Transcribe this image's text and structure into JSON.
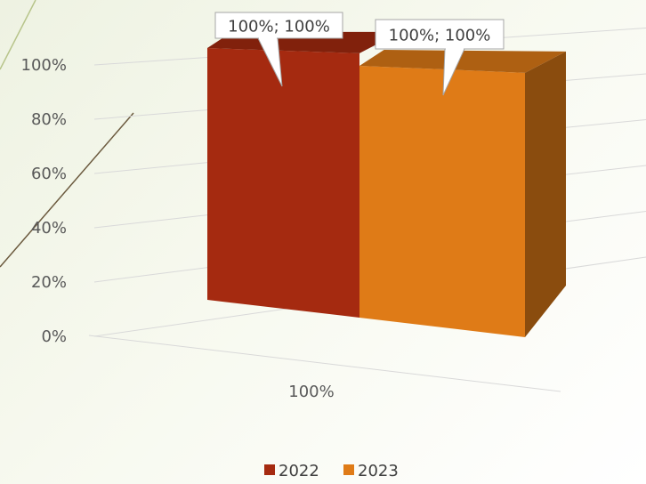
{
  "chart_data": {
    "type": "bar",
    "categories": [
      "100%"
    ],
    "series": [
      {
        "name": "2022",
        "values": [
          1.0
        ],
        "label": "100%; 100%",
        "color": "#a52a10"
      },
      {
        "name": "2023",
        "values": [
          1.0
        ],
        "label": "100%; 100%",
        "color": "#df7b17"
      }
    ],
    "yticks": [
      "0%",
      "20%",
      "40%",
      "60%",
      "80%",
      "100%"
    ],
    "ylim": [
      0,
      1
    ],
    "title": "",
    "xlabel": "",
    "ylabel": "",
    "grid": true,
    "legend": "bottom",
    "style": "3d-clustered-column"
  }
}
